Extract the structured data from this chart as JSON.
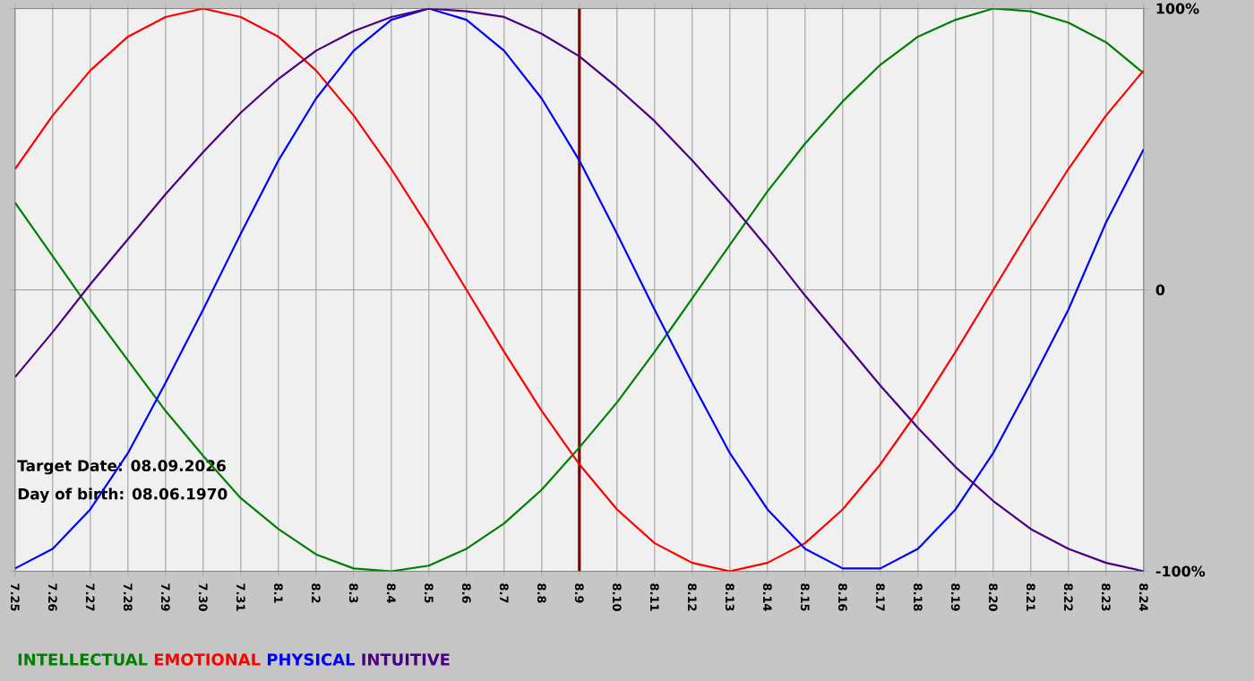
{
  "chart_data": {
    "type": "line",
    "categories": [
      "7.25",
      "7.26",
      "7.27",
      "7.28",
      "7.29",
      "7.30",
      "7.31",
      "8.1",
      "8.2",
      "8.3",
      "8.4",
      "8.5",
      "8.6",
      "8.7",
      "8.8",
      "8.9",
      "8.10",
      "8.11",
      "8.12",
      "8.13",
      "8.14",
      "8.15",
      "8.16",
      "8.17",
      "8.18",
      "8.19",
      "8.20",
      "8.21",
      "8.22",
      "8.23",
      "8.24"
    ],
    "series": [
      {
        "name": "INTELLECTUAL",
        "color": "#008000",
        "values": [
          31,
          12,
          -7,
          -25,
          -43,
          -59,
          -74,
          -85,
          -94,
          -99,
          -100,
          -98,
          -92,
          -83,
          -71,
          -56,
          -40,
          -22,
          -3,
          16,
          35,
          52,
          67,
          80,
          90,
          96,
          100,
          99,
          95,
          88,
          77
        ]
      },
      {
        "name": "EMOTIONAL",
        "color": "#ff0000",
        "values": [
          43,
          62,
          78,
          90,
          97,
          100,
          97,
          90,
          78,
          62,
          43,
          22,
          0,
          -22,
          -43,
          -62,
          -78,
          -90,
          -97,
          -100,
          -97,
          -90,
          -78,
          -62,
          -43,
          -22,
          0,
          22,
          43,
          62,
          78
        ]
      },
      {
        "name": "PHYSICAL",
        "color": "#0000ff",
        "values": [
          -99,
          -92,
          -78,
          -58,
          -33,
          -7,
          20,
          46,
          68,
          85,
          96,
          100,
          96,
          85,
          68,
          46,
          20,
          -7,
          -33,
          -58,
          -78,
          -92,
          -99,
          -99,
          -92,
          -78,
          -58,
          -33,
          -7,
          24,
          50
        ]
      },
      {
        "name": "INTUITIVE",
        "color": "#4b0082",
        "values": [
          -31,
          -15,
          2,
          18,
          34,
          49,
          63,
          75,
          85,
          92,
          97,
          100,
          99,
          97,
          91,
          83,
          72,
          60,
          46,
          31,
          15,
          -2,
          -18,
          -34,
          -49,
          -63,
          -75,
          -85,
          -92,
          -97,
          -100
        ]
      }
    ],
    "ylim": [
      -100,
      100
    ],
    "yticks": [
      {
        "value": 100,
        "label": "100%"
      },
      0,
      {
        "value": -100,
        "label": "-100%"
      }
    ],
    "grid": true,
    "legend": "bottom left",
    "marker": "none",
    "line_style": "solid",
    "ref_lines": [
      {
        "axis": "x",
        "value": "8.9",
        "color": "#800000"
      }
    ],
    "annotations": [
      "Target Date: 08.09.2026",
      "Day of birth: 08.06.1970"
    ]
  }
}
